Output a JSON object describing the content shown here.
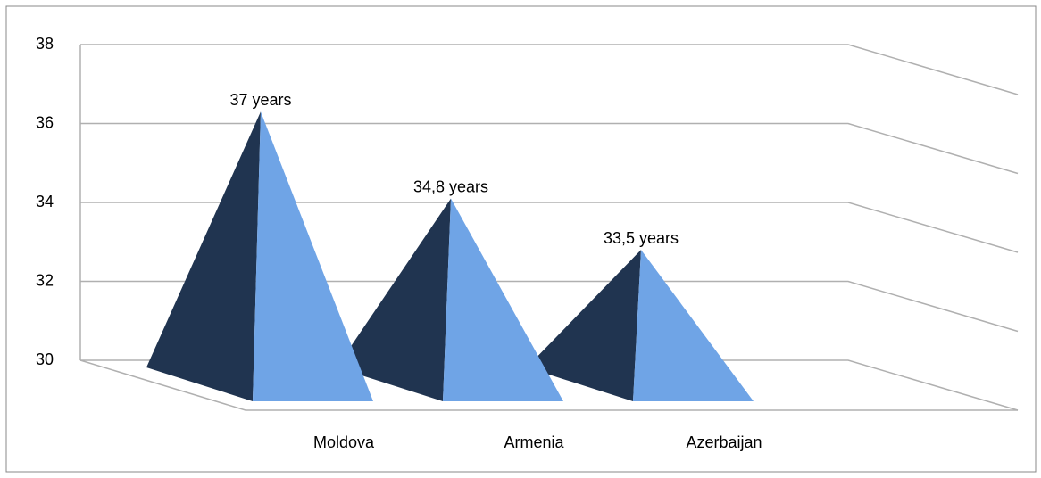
{
  "chart_data": {
    "type": "pyramid3d",
    "categories": [
      "Moldova",
      "Armenia",
      "Azerbaijan"
    ],
    "values": [
      37,
      34.8,
      33.5
    ],
    "value_labels": [
      "37 years",
      "34,8 years",
      "33,5 years"
    ],
    "color": "#203450",
    "side_color": "#6fa4e6",
    "ylim": [
      30,
      38
    ],
    "yticks": [
      30,
      32,
      34,
      36,
      38
    ],
    "grid": true
  }
}
